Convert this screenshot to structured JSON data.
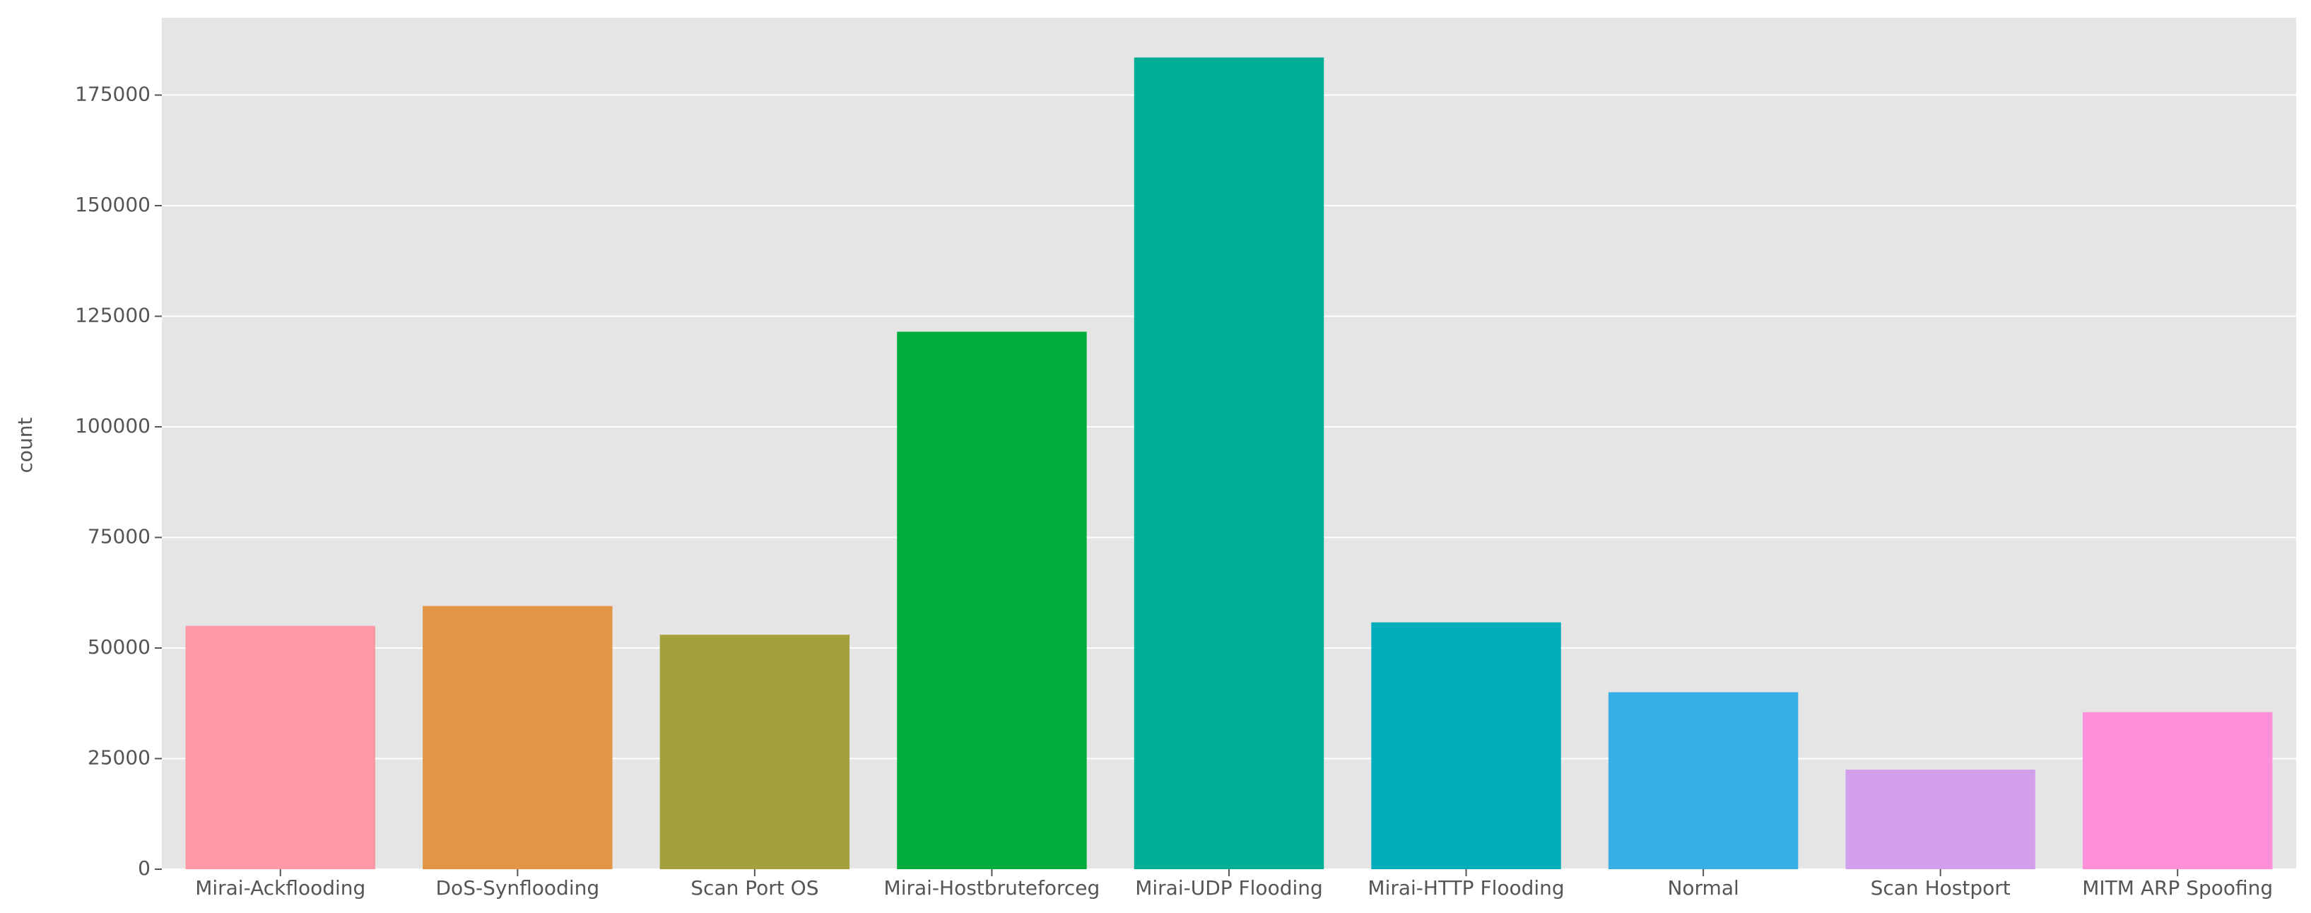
{
  "chart_data": {
    "type": "bar",
    "y_label": "count",
    "categories": [
      "Mirai-Ackflooding",
      "DoS-Synflooding",
      "Scan Port OS",
      "Mirai-Hostbruteforceg",
      "Mirai-UDP Flooding",
      "Mirai-HTTP Flooding",
      "Normal",
      "Scan Hostport",
      "MITM ARP Spoofing"
    ],
    "values": [
      55000,
      59500,
      53000,
      121500,
      183500,
      55800,
      40000,
      22500,
      35500
    ],
    "colors": [
      "#fd98a6",
      "#e29546",
      "#a5a03c",
      "#00ad3b",
      "#00ae95",
      "#00adba",
      "#37aee6",
      "#d2a0eb",
      "#fe8fd9"
    ],
    "ylim": [
      0,
      192500
    ],
    "yticks": [
      0,
      25000,
      50000,
      75000,
      100000,
      125000,
      150000,
      175000
    ],
    "grid": true
  }
}
